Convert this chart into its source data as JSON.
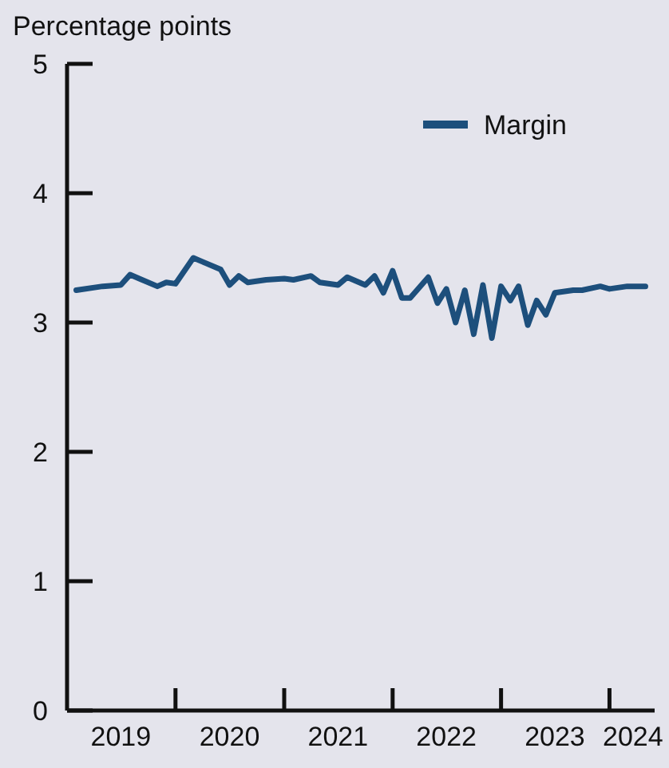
{
  "chart_data": {
    "type": "line",
    "ylabel": "Percentage points",
    "x": [
      "2019-02",
      "2019-05",
      "2019-07",
      "2019-08",
      "2019-09",
      "2019-11",
      "2019-12",
      "2020-01",
      "2020-03",
      "2020-04",
      "2020-06",
      "2020-07",
      "2020-08",
      "2020-09",
      "2020-11",
      "2021-01",
      "2021-02",
      "2021-04",
      "2021-05",
      "2021-07",
      "2021-08",
      "2021-10",
      "2021-11",
      "2021-12",
      "2022-01",
      "2022-02",
      "2022-03",
      "2022-05",
      "2022-06",
      "2022-07",
      "2022-08",
      "2022-09",
      "2022-10",
      "2022-11",
      "2022-12",
      "2023-01",
      "2023-02",
      "2023-03",
      "2023-04",
      "2023-05",
      "2023-06",
      "2023-07",
      "2023-09",
      "2023-10",
      "2023-12",
      "2024-01",
      "2024-03",
      "2024-05"
    ],
    "series": [
      {
        "name": "Margin",
        "color": "#1d4f7c",
        "values": [
          3.25,
          3.28,
          3.29,
          3.37,
          3.34,
          3.28,
          3.31,
          3.3,
          3.5,
          3.47,
          3.41,
          3.29,
          3.36,
          3.31,
          3.33,
          3.34,
          3.33,
          3.36,
          3.31,
          3.29,
          3.35,
          3.29,
          3.36,
          3.23,
          3.4,
          3.19,
          3.19,
          3.35,
          3.15,
          3.26,
          3.0,
          3.25,
          2.91,
          3.29,
          2.88,
          3.28,
          3.17,
          3.28,
          2.98,
          3.17,
          3.06,
          3.23,
          3.25,
          3.25,
          3.28,
          3.26,
          3.28,
          3.28
        ]
      }
    ],
    "xlim": [
      "2019-01",
      "2024-06"
    ],
    "xticks": [
      {
        "value": "2019-07",
        "label": "2019"
      },
      {
        "value": "2020-01",
        "label": null
      },
      {
        "value": "2020-07",
        "label": "2020"
      },
      {
        "value": "2021-01",
        "label": null
      },
      {
        "value": "2021-07",
        "label": "2021"
      },
      {
        "value": "2022-01",
        "label": null
      },
      {
        "value": "2022-07",
        "label": "2022"
      },
      {
        "value": "2023-01",
        "label": null
      },
      {
        "value": "2023-07",
        "label": "2023"
      },
      {
        "value": "2024-01",
        "label": null
      },
      {
        "value": "2024-03-20",
        "label": "2024"
      }
    ],
    "ylim": [
      0,
      5
    ],
    "yticks": [
      0,
      1,
      2,
      3,
      4,
      5
    ],
    "legend": "top right",
    "line_style": "solid",
    "marker": "none"
  }
}
